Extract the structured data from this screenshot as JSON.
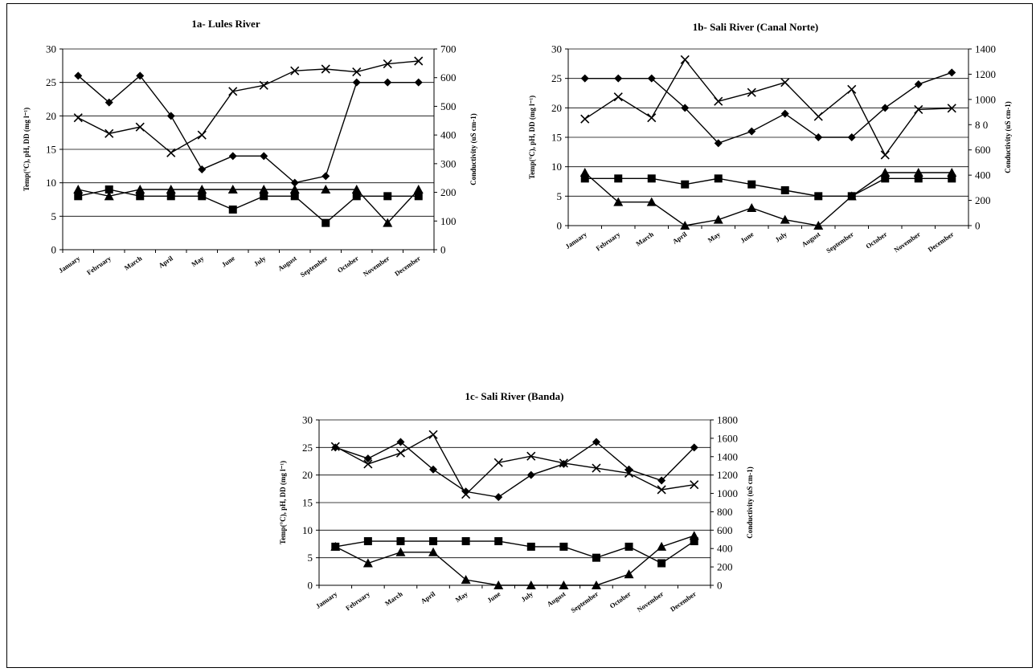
{
  "chart_data": [
    {
      "type": "line",
      "title": "1a- Lules River",
      "ylabel_left": "Temp(°C), pH, DD (mg l⁻¹)",
      "ylabel_right": "Conductivity (uS cm-1)",
      "categories": [
        "January",
        "February",
        "March",
        "April",
        "May",
        "June",
        "July",
        "August",
        "September",
        "October",
        "November",
        "December"
      ],
      "ylim_left": [
        0,
        30
      ],
      "yticks_left": [
        0,
        5,
        10,
        15,
        20,
        25,
        30
      ],
      "ylim_right": [
        0,
        700
      ],
      "yticks_right": [
        0,
        100,
        200,
        300,
        400,
        500,
        600,
        700
      ],
      "grid": true,
      "series": [
        {
          "marker": "diamond",
          "axis": "left",
          "values": [
            26,
            22,
            26,
            20,
            12,
            14,
            14,
            10,
            11,
            25,
            25,
            25
          ]
        },
        {
          "marker": "square",
          "axis": "left",
          "values": [
            8,
            9,
            8,
            8,
            8,
            6,
            8,
            8,
            4,
            8,
            8,
            8
          ]
        },
        {
          "marker": "triangle",
          "axis": "left",
          "values": [
            9,
            8,
            9,
            9,
            9,
            9,
            9,
            9,
            9,
            9,
            4,
            9
          ]
        },
        {
          "marker": "x",
          "axis": "right",
          "values": [
            460,
            405,
            428,
            338,
            400,
            552,
            573,
            624,
            630,
            620,
            648,
            658
          ]
        }
      ]
    },
    {
      "type": "line",
      "title": "1b- Sali River (Canal Norte)",
      "ylabel_left": "Temp(°C), pH, DD (mg l⁻¹)",
      "ylabel_right": "Conductivity (uS cm-1)",
      "categories": [
        "January",
        "February",
        "March",
        "April",
        "May",
        "June",
        "July",
        "August",
        "September",
        "October",
        "November",
        "December"
      ],
      "ylim_left": [
        0,
        30
      ],
      "yticks_left": [
        0,
        5,
        10,
        15,
        20,
        25,
        30
      ],
      "ylim_right": [
        0,
        1400
      ],
      "yticks_right": [
        0,
        200,
        400,
        600,
        "8 0",
        1000,
        1200,
        1400
      ],
      "grid": true,
      "series": [
        {
          "marker": "diamond",
          "axis": "left",
          "values": [
            25,
            25,
            25,
            20,
            14,
            16,
            19,
            15,
            15,
            20,
            24,
            26
          ]
        },
        {
          "marker": "square",
          "axis": "left",
          "values": [
            8,
            8,
            8,
            7,
            8,
            7,
            6,
            5,
            5,
            8,
            8,
            8
          ]
        },
        {
          "marker": "triangle",
          "axis": "left",
          "values": [
            9,
            4,
            4,
            0,
            1,
            3,
            1,
            0,
            5,
            9,
            9,
            9
          ]
        },
        {
          "marker": "x",
          "axis": "right",
          "values": [
            845,
            1020,
            855,
            1315,
            985,
            1055,
            1135,
            865,
            1080,
            560,
            920,
            930
          ]
        }
      ]
    },
    {
      "type": "line",
      "title": "1c- Sali River (Banda)",
      "ylabel_left": "Temp(°C), pH, DD (mg l⁻¹)",
      "ylabel_right": "Conductivity (uS cm-1)",
      "categories": [
        "January",
        "February",
        "March",
        "April",
        "May",
        "June",
        "July",
        "August",
        "September",
        "October",
        "November",
        "December"
      ],
      "ylim_left": [
        0,
        30
      ],
      "yticks_left": [
        0,
        5,
        10,
        15,
        20,
        25,
        30
      ],
      "ylim_right": [
        0,
        1800
      ],
      "yticks_right": [
        0,
        200,
        400,
        600,
        800,
        1000,
        1200,
        1400,
        1600,
        1800
      ],
      "grid": true,
      "series": [
        {
          "marker": "diamond",
          "axis": "left",
          "values": [
            25,
            23,
            26,
            21,
            17,
            16,
            20,
            22,
            26,
            21,
            19,
            25
          ]
        },
        {
          "marker": "square",
          "axis": "left",
          "values": [
            7,
            8,
            8,
            8,
            8,
            8,
            7,
            7,
            5,
            7,
            4,
            8
          ]
        },
        {
          "marker": "triangle",
          "axis": "left",
          "values": [
            7,
            4,
            6,
            6,
            1,
            0,
            0,
            0,
            0,
            2,
            7,
            9
          ]
        },
        {
          "marker": "x",
          "axis": "right",
          "values": [
            1510,
            1320,
            1440,
            1640,
            990,
            1335,
            1405,
            1330,
            1275,
            1220,
            1040,
            1095
          ]
        }
      ]
    }
  ]
}
